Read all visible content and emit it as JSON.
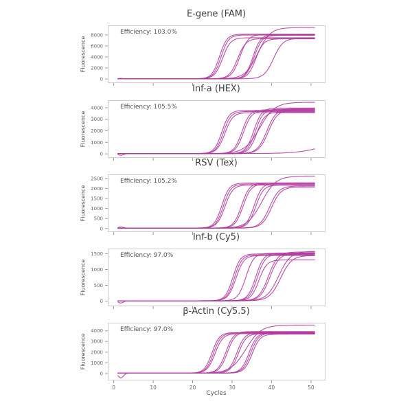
{
  "page": {
    "background": "#ffffff",
    "description": "Multiplex qPCR amplification curves, five fluorophore channels"
  },
  "style": {
    "curve_color": "#b03a9e",
    "frame_color": "#cccccc",
    "tick_color": "#999999",
    "title_color": "#404040",
    "label_color": "#555555",
    "tick_label_color": "#666666"
  },
  "chart_shared": {
    "xlabel": "Cycles",
    "ylabel": "Fluorescence",
    "x_ticks": [
      0,
      10,
      20,
      30,
      40,
      50
    ],
    "xlim": [
      -1.5,
      53.5
    ],
    "x_start": 1,
    "x_end": 51,
    "curve_model": "sigmoid: y = baseline + plateau / (1 + exp(-(x - ct)/slope))"
  },
  "chart_data": [
    {
      "type": "line",
      "title": "E-gene (FAM)",
      "annotation": "Efficiency: 103.0%",
      "efficiency_pct": 103.0,
      "ylabel": "Fluorescence",
      "y_ticks": [
        0,
        2000,
        4000,
        6000,
        8000
      ],
      "ylim": [
        -740,
        9720
      ],
      "baseline": 30,
      "show_x_tick_labels": false,
      "curves": [
        {
          "ct": 26.8,
          "plateau": 8100,
          "slope": 0.95,
          "dip": 80
        },
        {
          "ct": 27.2,
          "plateau": 7950,
          "slope": 0.95
        },
        {
          "ct": 27.6,
          "plateau": 7450,
          "slope": 1.0
        },
        {
          "ct": 31.4,
          "plateau": 7300,
          "slope": 1.05
        },
        {
          "ct": 32.0,
          "plateau": 8050,
          "slope": 1.05
        },
        {
          "ct": 35.3,
          "plateau": 8000,
          "slope": 0.95
        },
        {
          "ct": 35.6,
          "plateau": 7900,
          "slope": 1.0
        },
        {
          "ct": 36.0,
          "plateau": 7250,
          "slope": 1.0
        },
        {
          "ct": 36.5,
          "plateau": 9300,
          "slope": 1.6
        },
        {
          "ct": 40.5,
          "plateau": 7350,
          "slope": 1.2
        }
      ]
    },
    {
      "type": "line",
      "title": "Inf-a (HEX)",
      "annotation": "Efficiency: 105.5%",
      "efficiency_pct": 105.5,
      "ylabel": "Fluorescence",
      "y_ticks": [
        0,
        1000,
        2000,
        3000,
        4000
      ],
      "ylim": [
        -350,
        4650
      ],
      "baseline": 25,
      "show_x_tick_labels": false,
      "curves": [
        {
          "ct": 27.4,
          "plateau": 3750,
          "slope": 0.95
        },
        {
          "ct": 27.8,
          "plateau": 3650,
          "slope": 0.95
        },
        {
          "ct": 28.2,
          "plateau": 3550,
          "slope": 1.0
        },
        {
          "ct": 32.5,
          "plateau": 3800,
          "slope": 1.0
        },
        {
          "ct": 32.9,
          "plateau": 3700,
          "slope": 1.0
        },
        {
          "ct": 35.5,
          "plateau": 3950,
          "slope": 1.0
        },
        {
          "ct": 35.9,
          "plateau": 3850,
          "slope": 1.0
        },
        {
          "ct": 36.3,
          "plateau": 3600,
          "slope": 1.0,
          "dip": -150
        },
        {
          "ct": 37.0,
          "plateau": 4450,
          "slope": 1.9
        },
        {
          "ct": 38.8,
          "plateau": 3900,
          "slope": 1.2
        },
        {
          "ct": 39.2,
          "plateau": 3800,
          "slope": 1.2
        },
        {
          "ct": 54.0,
          "plateau": 1400,
          "slope": 3.5
        }
      ]
    },
    {
      "type": "line",
      "title": "RSV (Tex)",
      "annotation": "Efficiency: 105.2%",
      "efficiency_pct": 105.2,
      "ylabel": "Fluorescence",
      "y_ticks": [
        0,
        500,
        1000,
        1500,
        2000,
        2500
      ],
      "ylim": [
        -180,
        2700
      ],
      "baseline": 20,
      "show_x_tick_labels": false,
      "curves": [
        {
          "ct": 27.4,
          "plateau": 2250,
          "slope": 0.95,
          "dip": 55
        },
        {
          "ct": 27.8,
          "plateau": 2200,
          "slope": 0.95
        },
        {
          "ct": 28.2,
          "plateau": 2150,
          "slope": 1.0
        },
        {
          "ct": 32.4,
          "plateau": 2250,
          "slope": 1.0
        },
        {
          "ct": 32.8,
          "plateau": 2200,
          "slope": 1.0
        },
        {
          "ct": 35.6,
          "plateau": 2250,
          "slope": 1.0
        },
        {
          "ct": 36.0,
          "plateau": 2150,
          "slope": 1.0
        },
        {
          "ct": 37.5,
          "plateau": 2600,
          "slope": 1.8
        },
        {
          "ct": 39.5,
          "plateau": 2100,
          "slope": 1.2
        },
        {
          "ct": 40.0,
          "plateau": 2050,
          "slope": 1.2
        }
      ]
    },
    {
      "type": "line",
      "title": "Inf-b (Cy5)",
      "annotation": "Efficiency: 97.0%",
      "efficiency_pct": 97.0,
      "ylabel": "Fluorescence",
      "y_ticks": [
        0,
        500,
        1000,
        1500
      ],
      "ylim": [
        -160,
        1660
      ],
      "baseline": 12,
      "show_x_tick_labels": false,
      "curves": [
        {
          "ct": 30.2,
          "plateau": 1480,
          "slope": 0.95
        },
        {
          "ct": 30.6,
          "plateau": 1450,
          "slope": 0.95
        },
        {
          "ct": 31.0,
          "plateau": 1430,
          "slope": 1.0,
          "dip": -70
        },
        {
          "ct": 33.5,
          "plateau": 1500,
          "slope": 1.0
        },
        {
          "ct": 36.0,
          "plateau": 1510,
          "slope": 1.0
        },
        {
          "ct": 36.4,
          "plateau": 1470,
          "slope": 1.0
        },
        {
          "ct": 36.8,
          "plateau": 1290,
          "slope": 1.0
        },
        {
          "ct": 39.2,
          "plateau": 1540,
          "slope": 1.2
        },
        {
          "ct": 39.6,
          "plateau": 1500,
          "slope": 1.2
        },
        {
          "ct": 41.8,
          "plateau": 1560,
          "slope": 1.5
        },
        {
          "ct": 42.3,
          "plateau": 1430,
          "slope": 1.4
        }
      ]
    },
    {
      "type": "line",
      "title": "β-Actin (Cy5.5)",
      "annotation": "Efficiency: 97.0%",
      "efficiency_pct": 97.0,
      "ylabel": "Fluorescence",
      "y_ticks": [
        0,
        1000,
        2000,
        3000,
        4000
      ],
      "ylim": [
        -650,
        4750
      ],
      "baseline": 30,
      "show_x_tick_labels": true,
      "curves": [
        {
          "ct": 24.9,
          "plateau": 3800,
          "slope": 0.95
        },
        {
          "ct": 25.3,
          "plateau": 3750,
          "slope": 0.95
        },
        {
          "ct": 25.7,
          "plateau": 3700,
          "slope": 1.0
        },
        {
          "ct": 28.4,
          "plateau": 3900,
          "slope": 1.0
        },
        {
          "ct": 28.8,
          "plateau": 3850,
          "slope": 1.0
        },
        {
          "ct": 31.2,
          "plateau": 3800,
          "slope": 1.0
        },
        {
          "ct": 31.6,
          "plateau": 3700,
          "slope": 1.0,
          "dip": -450
        },
        {
          "ct": 33.5,
          "plateau": 4500,
          "slope": 1.9
        },
        {
          "ct": 34.3,
          "plateau": 3800,
          "slope": 1.0
        },
        {
          "ct": 34.7,
          "plateau": 3750,
          "slope": 1.0
        },
        {
          "ct": 35.1,
          "plateau": 3650,
          "slope": 1.0
        }
      ]
    }
  ]
}
